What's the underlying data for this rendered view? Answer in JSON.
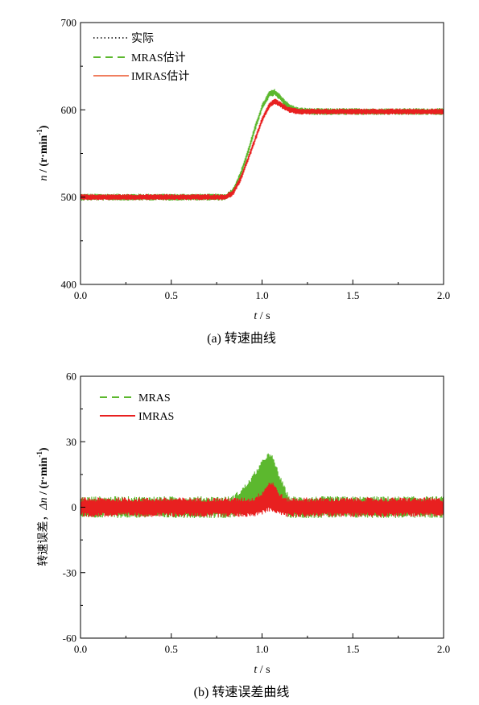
{
  "chart_data": [
    {
      "type": "line",
      "caption": "(a)  转速曲线",
      "xlabel_var": "t",
      "xlabel_unit": " / s",
      "ylabel_var": "n",
      "ylabel_unit": " / (r·min",
      "ylabel_sup": "-1",
      "ylabel_tail": ")",
      "xlim": [
        0.0,
        2.0
      ],
      "ylim": [
        400,
        700
      ],
      "xticks": [
        "0.0",
        "0.5",
        "1.0",
        "1.5",
        "2.0"
      ],
      "yticks": [
        "400",
        "500",
        "600",
        "700"
      ],
      "legend_position": "top-left",
      "series": [
        {
          "name": "实际",
          "color": "#000000",
          "style": "dotted",
          "x": [
            0.0,
            0.8,
            0.84,
            0.88,
            0.92,
            0.96,
            1.0,
            1.04,
            1.07,
            1.1,
            1.15,
            1.2,
            1.3,
            2.0
          ],
          "values": [
            500,
            500,
            505,
            520,
            542,
            565,
            588,
            605,
            610,
            606,
            600,
            598,
            598,
            598
          ],
          "noise": 0
        },
        {
          "name": "MRAS估计",
          "color": "#5cb82e",
          "style": "dashed",
          "x": [
            0.0,
            0.8,
            0.84,
            0.88,
            0.92,
            0.96,
            1.0,
            1.04,
            1.07,
            1.1,
            1.15,
            1.2,
            1.3,
            2.0
          ],
          "values": [
            500,
            500,
            507,
            525,
            550,
            578,
            603,
            618,
            620,
            614,
            603,
            599,
            598,
            598
          ],
          "noise": 4
        },
        {
          "name": "IMRAS估计",
          "color": "#e82020",
          "style": "solid",
          "x": [
            0.0,
            0.8,
            0.84,
            0.88,
            0.92,
            0.96,
            1.0,
            1.04,
            1.07,
            1.1,
            1.15,
            1.2,
            1.3,
            2.0
          ],
          "values": [
            500,
            500,
            505,
            520,
            542,
            565,
            588,
            605,
            610,
            606,
            600,
            598,
            598,
            598
          ],
          "noise": 3.5
        }
      ]
    },
    {
      "type": "line",
      "caption": "(b)  转速误差曲线",
      "xlabel_var": "t",
      "xlabel_unit": " / s",
      "ylabel_prefix": "转速误差，",
      "ylabel_var": "Δn",
      "ylabel_unit": " / (r·min",
      "ylabel_sup": "-1",
      "ylabel_tail": ")",
      "xlim": [
        0.0,
        2.0
      ],
      "ylim": [
        -60,
        60
      ],
      "xticks": [
        "0.0",
        "0.5",
        "1.0",
        "1.5",
        "2.0"
      ],
      "yticks": [
        "-60",
        "-30",
        "0",
        "30",
        "60"
      ],
      "legend_position": "top-left",
      "series": [
        {
          "name": "MRAS",
          "color": "#5cb82e",
          "style": "dashed",
          "x": [
            0.0,
            0.83,
            0.88,
            0.93,
            0.98,
            1.03,
            1.06,
            1.1,
            1.15,
            2.0
          ],
          "values": [
            0,
            0,
            2,
            5,
            9,
            13,
            12,
            6,
            0,
            0
          ],
          "noise": 5
        },
        {
          "name": "IMRAS",
          "color": "#e82020",
          "style": "solid",
          "x": [
            0.0,
            0.95,
            1.0,
            1.04,
            1.06,
            1.09,
            1.13,
            2.0
          ],
          "values": [
            0,
            0,
            2,
            5,
            5,
            2,
            0,
            0
          ],
          "noise": 4.5
        }
      ]
    }
  ]
}
